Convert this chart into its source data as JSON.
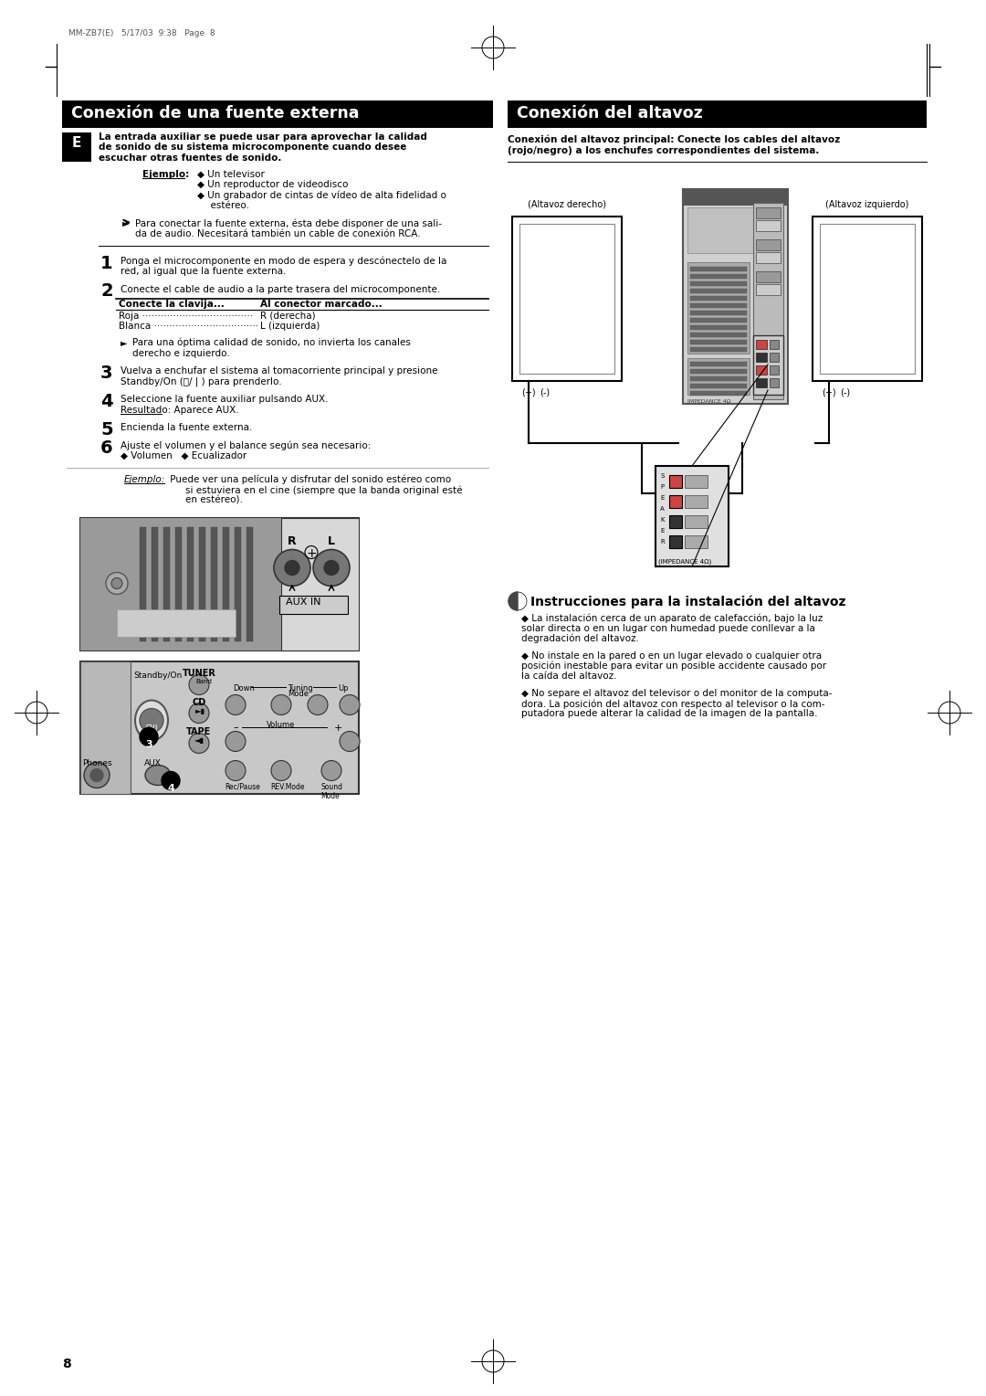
{
  "page_header": "MM-ZB7(E)   5/17/03  9:38   Page  8",
  "page_number": "8",
  "title_left": "Conexión de una fuente externa",
  "title_right": "Conexión del altavoz",
  "e_label": "E",
  "intro_bold": "La entrada auxiliar se puede usar para aprovechar la calidad\nde sonido de su sistema microcomponente cuando desee\nescuchar otras fuentes de sonido.",
  "ejemplo_label": "Ejemplo:",
  "ejemplo_item1": "◆ Un televisor",
  "ejemplo_item2": "◆ Un reproductor de videodisco",
  "ejemplo_item3": "◆ Un grabador de cintas de vídeo de alta fidelidad o",
  "ejemplo_item3b": "  estéreo.",
  "note1_line1": "Para conectar la fuente externa, ésta debe disponer de una sali-",
  "note1_line2": "da de audio. Necesitará también un cable de conexión RCA.",
  "step1_line1": "Ponga el microcomponente en modo de espera y descónectelo de la",
  "step1_line2": "red, al igual que la fuente externa.",
  "step2_line1": "Conecte el cable de audio a la parte trasera del microcomponente.",
  "table_hdr_left": "Conecte la clavija...",
  "table_hdr_right": "Al conector marcado...",
  "table_row1_left": "Roja ····································",
  "table_row1_right": "R (derecha)",
  "table_row2_left": "Blanca ··································",
  "table_row2_right": "L (izquierda)",
  "table_note_line1": "Para una óptima calidad de sonido, no invierta los canales",
  "table_note_line2": "derecho e izquierdo.",
  "step3_line1": "Vuelva a enchufar el sistema al tomacorriente principal y presione",
  "step3_line2": "Standby/On (⏻/ | ) para prenderlo.",
  "step3_line2b": "Standby/On",
  "step4_line1": "Seleccione la fuente auxiliar pulsando AUX.",
  "step4_line2": "Resultado: Aparece AUX.",
  "step5": "Encienda la fuente externa.",
  "step6_line1": "Ajuste el volumen y el balance según sea necesario:",
  "step6_line2": "◆ Volumen   ◆ Ecualizador",
  "ejemplo_bottom_label": "Ejemplo:",
  "ejemplo_bottom_text1": " Puede ver una película y disfrutar del sonido estéreo como",
  "ejemplo_bottom_text2": "si estuviera en el cine (siempre que la banda original esté",
  "ejemplo_bottom_text3": "en estéreo).",
  "right_intro_line1": "Conexión del altavoz principal: Conecte los cables del altavoz",
  "right_intro_line2": "(rojo/negro) a los enchufes correspondientes del sistema.",
  "altavoz_derecho": "(Altavoz derecho)",
  "altavoz_izquierdo": "(Altavoz izquierdo)",
  "impedance_label": "(IMPEDANCE 4Ω)",
  "instrucciones_title": "Instrucciones para la instalación del altavoz",
  "inst_item1_line1": "◆ La instalación cerca de un aparato de calefacción, bajo la luz",
  "inst_item1_line2": "solar directa o en un lugar con humedad puede conllevar a la",
  "inst_item1_line3": "degradación del altavoz.",
  "inst_item2_line1": "◆ No instale en la pared o en un lugar elevado o cualquier otra",
  "inst_item2_line2": "posición inestable para evitar un posible accidente causado por",
  "inst_item2_line3": "la caída del altavoz.",
  "inst_item3_line1": "◆ No separe el altavoz del televisor o del monitor de la computa-",
  "inst_item3_line2": "dora. La posición del altavoz con respecto al televisor o la com-",
  "inst_item3_line3": "putadora puede alterar la calidad de la imagen de la pantalla.",
  "bg_color": "#ffffff"
}
